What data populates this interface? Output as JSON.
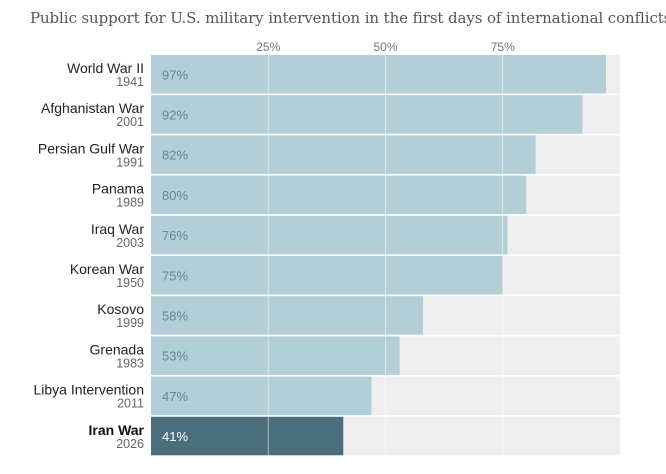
{
  "chart_data": {
    "type": "bar",
    "orientation": "horizontal",
    "title": "Public support for U.S. military intervention in the first days of international conflicts",
    "xlim": [
      0,
      100
    ],
    "ticks": [
      25,
      50,
      75
    ],
    "tick_labels": [
      "25%",
      "50%",
      "75%"
    ],
    "categories": [
      "World War II",
      "Afghanistan War",
      "Persian Gulf War",
      "Panama",
      "Iraq War",
      "Korean War",
      "Kosovo",
      "Grenada",
      "Libya Intervention",
      "Iran War"
    ],
    "years": [
      "1941",
      "2001",
      "1991",
      "1989",
      "2003",
      "1950",
      "1999",
      "1983",
      "2011",
      "2026"
    ],
    "values": [
      97,
      92,
      82,
      80,
      76,
      75,
      58,
      53,
      47,
      41
    ],
    "value_labels": [
      "97%",
      "92%",
      "82%",
      "80%",
      "76%",
      "75%",
      "58%",
      "53%",
      "47%",
      "41%"
    ],
    "highlight": "Iran War",
    "colors": {
      "bar": "#b2ced6",
      "highlight_bar": "#4b6e7c",
      "track": "#efefef",
      "gridline": "#ffffff"
    }
  }
}
